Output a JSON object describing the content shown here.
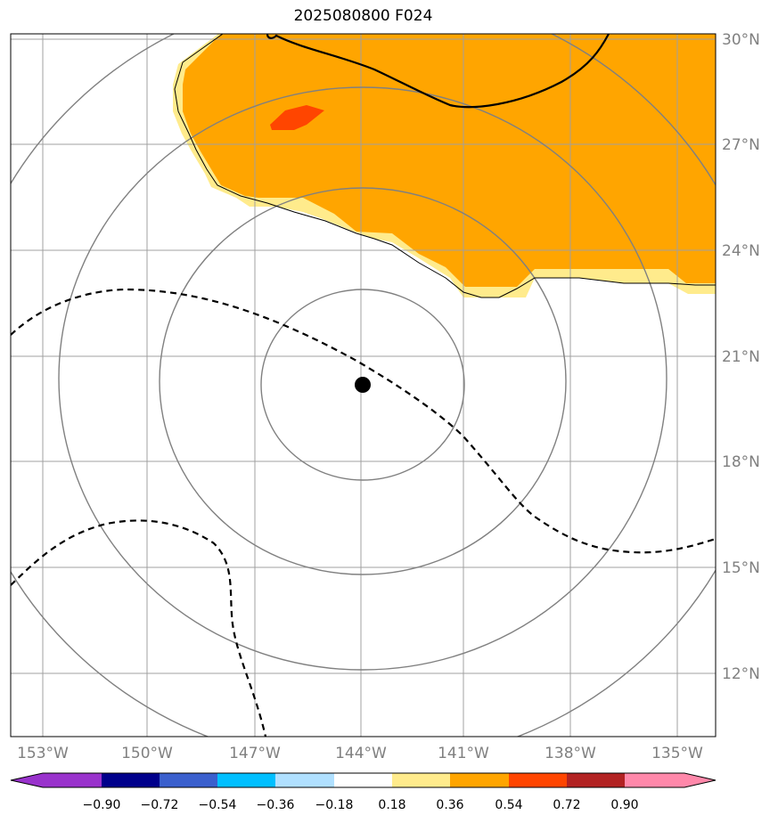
{
  "title": "2025080800 F024",
  "map": {
    "type": "lat-lon contour map",
    "lon_range": [
      -154,
      -133.5
    ],
    "lat_range": [
      10,
      30.5
    ],
    "center_marker": {
      "lon": -143.9,
      "lat": 20.2
    },
    "range_rings": "concentric circles around center",
    "lon_ticks": [
      "153°W",
      "150°W",
      "147°W",
      "144°W",
      "141°W",
      "138°W",
      "135°W"
    ],
    "lat_ticks": [
      "30°N",
      "27°N",
      "24°N",
      "21°N",
      "18°N",
      "15°N",
      "12°N"
    ],
    "colors": {
      "grid": "#a0a0a0",
      "rings": "#808080",
      "fill_0_36": "#ffeb8c",
      "fill_0_54": "#ffa500",
      "fill_0_72": "#ff4500",
      "marker": "#000000"
    }
  },
  "colorbar": {
    "ticks": [
      "−0.90",
      "−0.72",
      "−0.54",
      "−0.36",
      "−0.18",
      "0.18",
      "0.36",
      "0.54",
      "0.72",
      "0.90"
    ],
    "colors": [
      "#9932cc",
      "#00008b",
      "#3a5fcd",
      "#00bfff",
      "#b0e0ff",
      "#ffffff",
      "#ffeb8c",
      "#ffa500",
      "#ff4500",
      "#b22222",
      "#ff88aa"
    ]
  }
}
